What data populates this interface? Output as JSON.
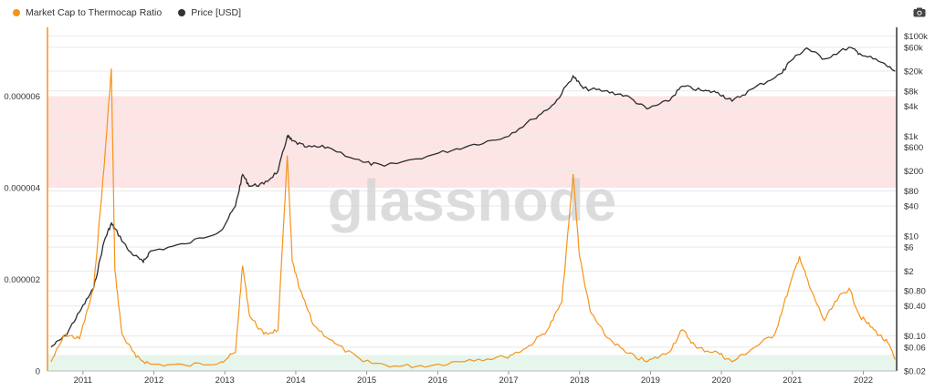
{
  "legend": {
    "items": [
      {
        "label": "Market Cap to Thermocap Ratio",
        "color": "#f7931a"
      },
      {
        "label": "Price [USD]",
        "color": "#333333"
      }
    ]
  },
  "watermark": "glassnode",
  "icons": {
    "export": "camera-icon"
  },
  "colors": {
    "ratio": "#f7931a",
    "price": "#2b2b2b",
    "red_band": "#fde5e6",
    "green_band": "#e6f6ec",
    "grid": "#e9e9e9",
    "watermark": "#d6d6d6"
  },
  "chart_data": {
    "type": "line",
    "x_axis": {
      "ticks": [
        "2011",
        "2012",
        "2013",
        "2014",
        "2015",
        "2016",
        "2017",
        "2018",
        "2019",
        "2020",
        "2021",
        "2022"
      ],
      "range": [
        "2010-07",
        "2022-07"
      ]
    },
    "y_left": {
      "label": "",
      "ticks": [
        "0",
        "0.000002",
        "0.000004",
        "0.000006"
      ],
      "range": [
        0,
        7.5e-06
      ]
    },
    "y_right": {
      "label": "",
      "scale": "log",
      "ticks": [
        "$0.02",
        "$0.06",
        "$0.10",
        "$0.40",
        "$0.80",
        "$2",
        "$6",
        "$10",
        "$40",
        "$80",
        "$200",
        "$600",
        "$1k",
        "$4k",
        "$8k",
        "$20k",
        "$60k",
        "$100k"
      ],
      "range": [
        0.02,
        150000
      ]
    },
    "bands": [
      {
        "name": "top",
        "from": 4e-06,
        "to": 6e-06
      },
      {
        "name": "bottom",
        "from": 0,
        "to": 3.5e-07
      }
    ],
    "grid": true,
    "legend_position": "top-left",
    "series": [
      {
        "name": "Market Cap to Thermocap Ratio",
        "axis": "left",
        "x": [
          2010.6,
          2010.8,
          2011.0,
          2011.2,
          2011.35,
          2011.45,
          2011.5,
          2011.6,
          2011.8,
          2012.0,
          2012.5,
          2013.0,
          2013.2,
          2013.3,
          2013.4,
          2013.6,
          2013.8,
          2013.93,
          2014.0,
          2014.1,
          2014.3,
          2014.6,
          2015.0,
          2015.5,
          2016.0,
          2016.5,
          2017.0,
          2017.3,
          2017.6,
          2017.8,
          2017.96,
          2018.05,
          2018.2,
          2018.4,
          2018.7,
          2019.0,
          2019.3,
          2019.5,
          2019.7,
          2020.0,
          2020.2,
          2020.5,
          2020.8,
          2021.0,
          2021.15,
          2021.3,
          2021.5,
          2021.7,
          2021.85,
          2022.0,
          2022.2,
          2022.4,
          2022.5
        ],
        "y": [
          2e-07,
          8e-07,
          7e-07,
          1.8e-06,
          4.5e-06,
          6.6e-06,
          2.2e-06,
          8e-07,
          3e-07,
          1.5e-07,
          1.2e-07,
          2e-07,
          4e-07,
          2.3e-06,
          1.2e-06,
          8e-07,
          9e-07,
          4.7e-06,
          2.4e-06,
          1.8e-06,
          1e-06,
          6e-07,
          2e-07,
          1e-07,
          1.3e-07,
          2.5e-07,
          3e-07,
          5e-07,
          9e-07,
          1.5e-06,
          4.3e-06,
          2.5e-06,
          1.3e-06,
          8e-07,
          4e-07,
          2e-07,
          4e-07,
          9e-07,
          5e-07,
          4e-07,
          2e-07,
          5e-07,
          8e-07,
          1.8e-06,
          2.5e-06,
          1.8e-06,
          1.1e-06,
          1.6e-06,
          1.8e-06,
          1.2e-06,
          9e-07,
          6e-07,
          2.5e-07
        ]
      },
      {
        "name": "Price [USD]",
        "axis": "right",
        "x": [
          2010.6,
          2010.8,
          2011.0,
          2011.2,
          2011.35,
          2011.45,
          2011.5,
          2011.7,
          2011.9,
          2012.0,
          2012.5,
          2013.0,
          2013.2,
          2013.3,
          2013.4,
          2013.6,
          2013.8,
          2013.93,
          2014.0,
          2014.2,
          2014.5,
          2015.0,
          2015.3,
          2016.0,
          2016.5,
          2017.0,
          2017.4,
          2017.7,
          2017.96,
          2018.1,
          2018.4,
          2018.7,
          2019.0,
          2019.3,
          2019.5,
          2019.8,
          2020.0,
          2020.2,
          2020.5,
          2020.9,
          2021.0,
          2021.25,
          2021.5,
          2021.85,
          2022.0,
          2022.3,
          2022.5
        ],
        "y": [
          0.06,
          0.1,
          0.3,
          0.9,
          8,
          18,
          14,
          5,
          3,
          5,
          7,
          13,
          40,
          170,
          100,
          110,
          200,
          1000,
          800,
          600,
          600,
          300,
          250,
          430,
          650,
          950,
          2200,
          4500,
          16000,
          9000,
          8000,
          6500,
          3500,
          5000,
          10000,
          8000,
          7500,
          5000,
          9000,
          18000,
          30000,
          58000,
          35000,
          60000,
          45000,
          30000,
          20000
        ]
      }
    ]
  }
}
